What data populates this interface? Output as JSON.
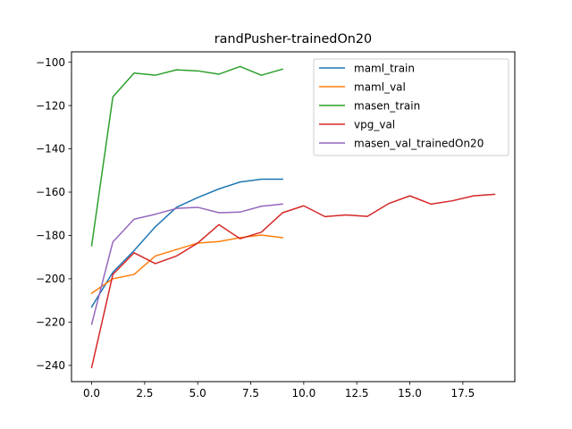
{
  "chart_data": {
    "type": "line",
    "title": "randPusher-trainedOn20",
    "xlabel": "",
    "ylabel": "",
    "xlim": [
      -0.95,
      19.95
    ],
    "ylim": [
      -247.5,
      -95.2
    ],
    "xticks": [
      0.0,
      2.5,
      5.0,
      7.5,
      10.0,
      12.5,
      15.0,
      17.5
    ],
    "xtick_labels": [
      "0.0",
      "2.5",
      "5.0",
      "7.5",
      "10.0",
      "12.5",
      "15.0",
      "17.5"
    ],
    "yticks": [
      -240,
      -220,
      -200,
      -180,
      -160,
      -140,
      -120,
      -100
    ],
    "ytick_labels": [
      "−240",
      "−220",
      "−200",
      "−180",
      "−160",
      "−140",
      "−120",
      "−100"
    ],
    "grid": false,
    "legend_position": "top-right",
    "series": [
      {
        "name": "maml_train",
        "color": "#1f77b4",
        "x": [
          0,
          1,
          2,
          3,
          4,
          5,
          6,
          7,
          8,
          9
        ],
        "y": [
          -213.0,
          -197.0,
          -187.0,
          -176.0,
          -167.0,
          -162.5,
          -158.5,
          -155.3,
          -154.0,
          -154.0
        ]
      },
      {
        "name": "maml_val",
        "color": "#ff7f0e",
        "x": [
          0,
          1,
          2,
          3,
          4,
          5,
          6,
          7,
          8,
          9
        ],
        "y": [
          -206.7,
          -200.0,
          -198.0,
          -189.5,
          -186.5,
          -183.5,
          -182.8,
          -181.0,
          -179.8,
          -181.0
        ]
      },
      {
        "name": "masen_train",
        "color": "#2ca02c",
        "x": [
          0,
          1,
          2,
          3,
          4,
          5,
          6,
          7,
          8,
          9
        ],
        "y": [
          -184.7,
          -116.0,
          -105.0,
          -106.0,
          -103.5,
          -104.0,
          -105.5,
          -102.0,
          -106.0,
          -103.2
        ]
      },
      {
        "name": "vpg_val",
        "color": "#d62728",
        "x": [
          0,
          1,
          2,
          3,
          4,
          5,
          6,
          7,
          8,
          9,
          10,
          11,
          12,
          13,
          14,
          15,
          16,
          17,
          18,
          19
        ],
        "y": [
          -241.0,
          -198.0,
          -188.0,
          -193.0,
          -189.5,
          -183.5,
          -175.0,
          -181.5,
          -178.5,
          -169.5,
          -166.3,
          -171.3,
          -170.5,
          -171.2,
          -165.3,
          -161.7,
          -165.5,
          -164.0,
          -161.7,
          -161.0
        ]
      },
      {
        "name": "masen_val_trainedOn20",
        "color": "#9467bd",
        "x": [
          0,
          1,
          2,
          3,
          4,
          5,
          6,
          7,
          8,
          9
        ],
        "y": [
          -221.0,
          -183.0,
          -172.5,
          -170.2,
          -167.5,
          -167.0,
          -169.5,
          -169.2,
          -166.5,
          -165.5
        ]
      }
    ]
  }
}
